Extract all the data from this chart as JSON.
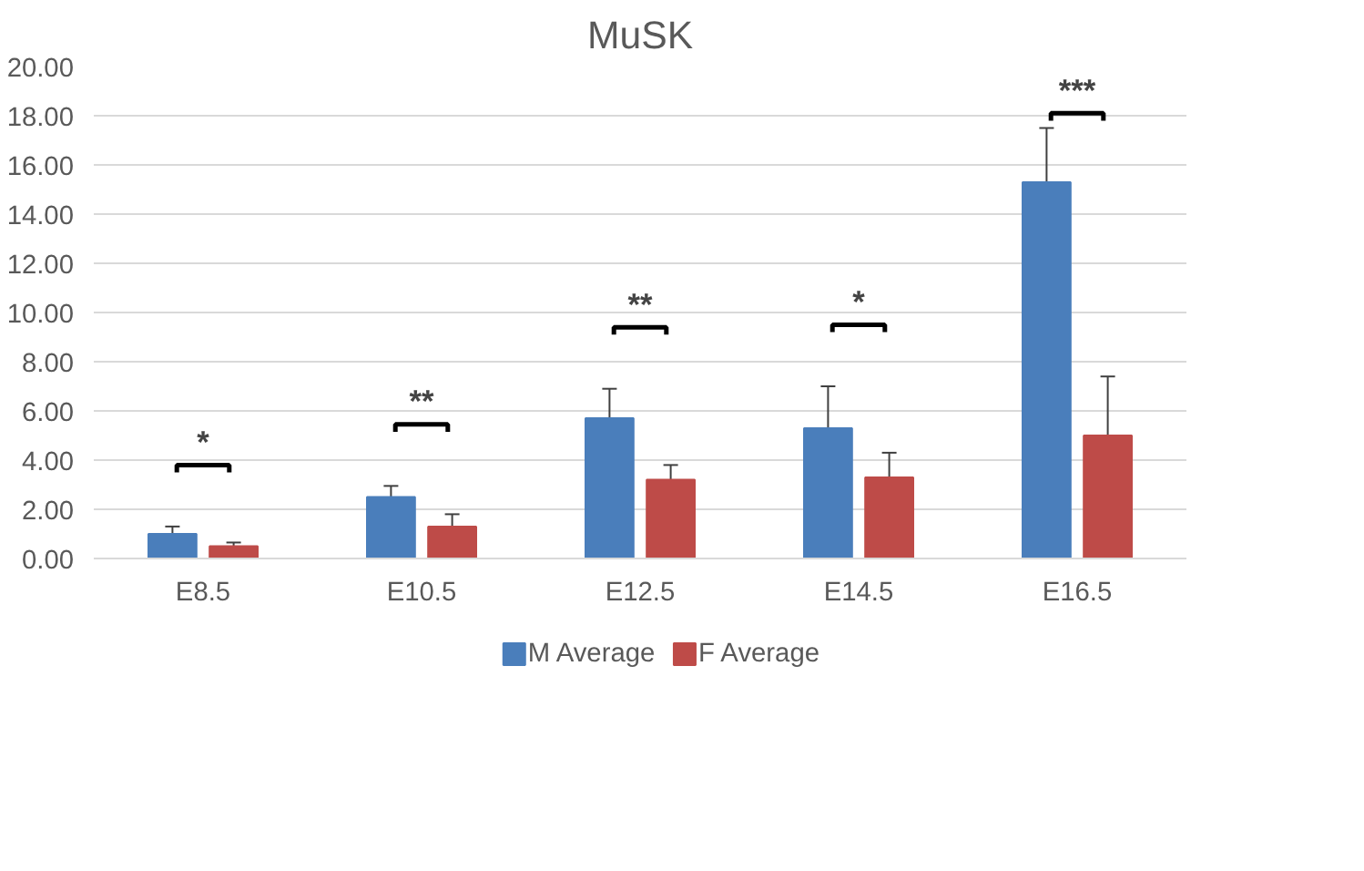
{
  "chart_data": {
    "type": "bar",
    "title": "MuSK",
    "categories": [
      "E8.5",
      "E10.5",
      "E12.5",
      "E14.5",
      "E16.5"
    ],
    "series": [
      {
        "name": "M Average",
        "color": "#4a7ebb",
        "values": [
          1.0,
          2.5,
          5.7,
          5.3,
          15.3
        ],
        "errors": [
          0.3,
          0.45,
          1.2,
          1.7,
          2.2
        ]
      },
      {
        "name": "F Average",
        "color": "#be4b48",
        "values": [
          0.5,
          1.3,
          3.2,
          3.3,
          5.0
        ],
        "errors": [
          0.15,
          0.5,
          0.6,
          1.0,
          2.4
        ]
      }
    ],
    "ylim": [
      0,
      20
    ],
    "yticks": [
      {
        "value": 0,
        "label": "0.00"
      },
      {
        "value": 2,
        "label": "2.00"
      },
      {
        "value": 4,
        "label": "4.00"
      },
      {
        "value": 6,
        "label": "6.00"
      },
      {
        "value": 8,
        "label": "8.00"
      },
      {
        "value": 10,
        "label": "10.00"
      },
      {
        "value": 12,
        "label": "12.00"
      },
      {
        "value": 14,
        "label": "14.00"
      },
      {
        "value": 16,
        "label": "16.00"
      },
      {
        "value": 18,
        "label": "18.00"
      },
      {
        "value": 20,
        "label": "20.00"
      }
    ],
    "grid": "y",
    "legend": "bottom",
    "annotations": [
      "*",
      "**",
      "**",
      "*",
      "***"
    ]
  }
}
